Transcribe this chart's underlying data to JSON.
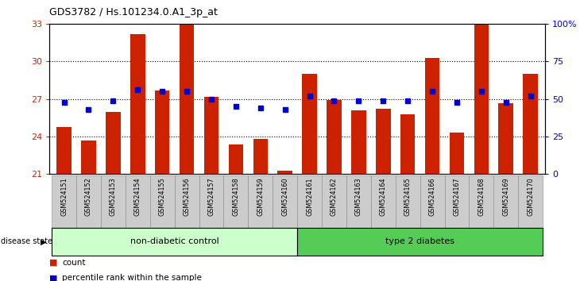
{
  "title": "GDS3782 / Hs.101234.0.A1_3p_at",
  "samples": [
    "GSM524151",
    "GSM524152",
    "GSM524153",
    "GSM524154",
    "GSM524155",
    "GSM524156",
    "GSM524157",
    "GSM524158",
    "GSM524159",
    "GSM524160",
    "GSM524161",
    "GSM524162",
    "GSM524163",
    "GSM524164",
    "GSM524165",
    "GSM524166",
    "GSM524167",
    "GSM524168",
    "GSM524169",
    "GSM524170"
  ],
  "counts": [
    24.8,
    23.7,
    26.0,
    32.2,
    27.7,
    33.2,
    27.2,
    23.4,
    23.8,
    21.3,
    29.0,
    26.9,
    26.1,
    26.2,
    25.8,
    30.3,
    24.3,
    33.0,
    26.7,
    29.0
  ],
  "percentile_ranks": [
    48,
    43,
    49,
    56,
    55,
    55,
    50,
    45,
    44,
    43,
    52,
    49,
    49,
    49,
    49,
    55,
    48,
    55,
    48,
    52
  ],
  "group1_label": "non-diabetic control",
  "group2_label": "type 2 diabetes",
  "group1_count": 10,
  "group2_count": 10,
  "ylim_left": [
    21,
    33
  ],
  "ylim_right": [
    0,
    100
  ],
  "yticks_left": [
    21,
    24,
    27,
    30,
    33
  ],
  "yticks_right": [
    0,
    25,
    50,
    75,
    100
  ],
  "yticklabels_right": [
    "0",
    "25",
    "50",
    "75",
    "100%"
  ],
  "bar_color": "#cc2200",
  "dot_color": "#0000cc",
  "bg_color": "#ffffff",
  "tick_bg_color": "#cccccc",
  "group1_color": "#ccffcc",
  "group2_color": "#55cc55",
  "legend_count_color": "#cc2200",
  "legend_pct_color": "#0000cc",
  "grid_dotted_vals": [
    24,
    27,
    30
  ]
}
